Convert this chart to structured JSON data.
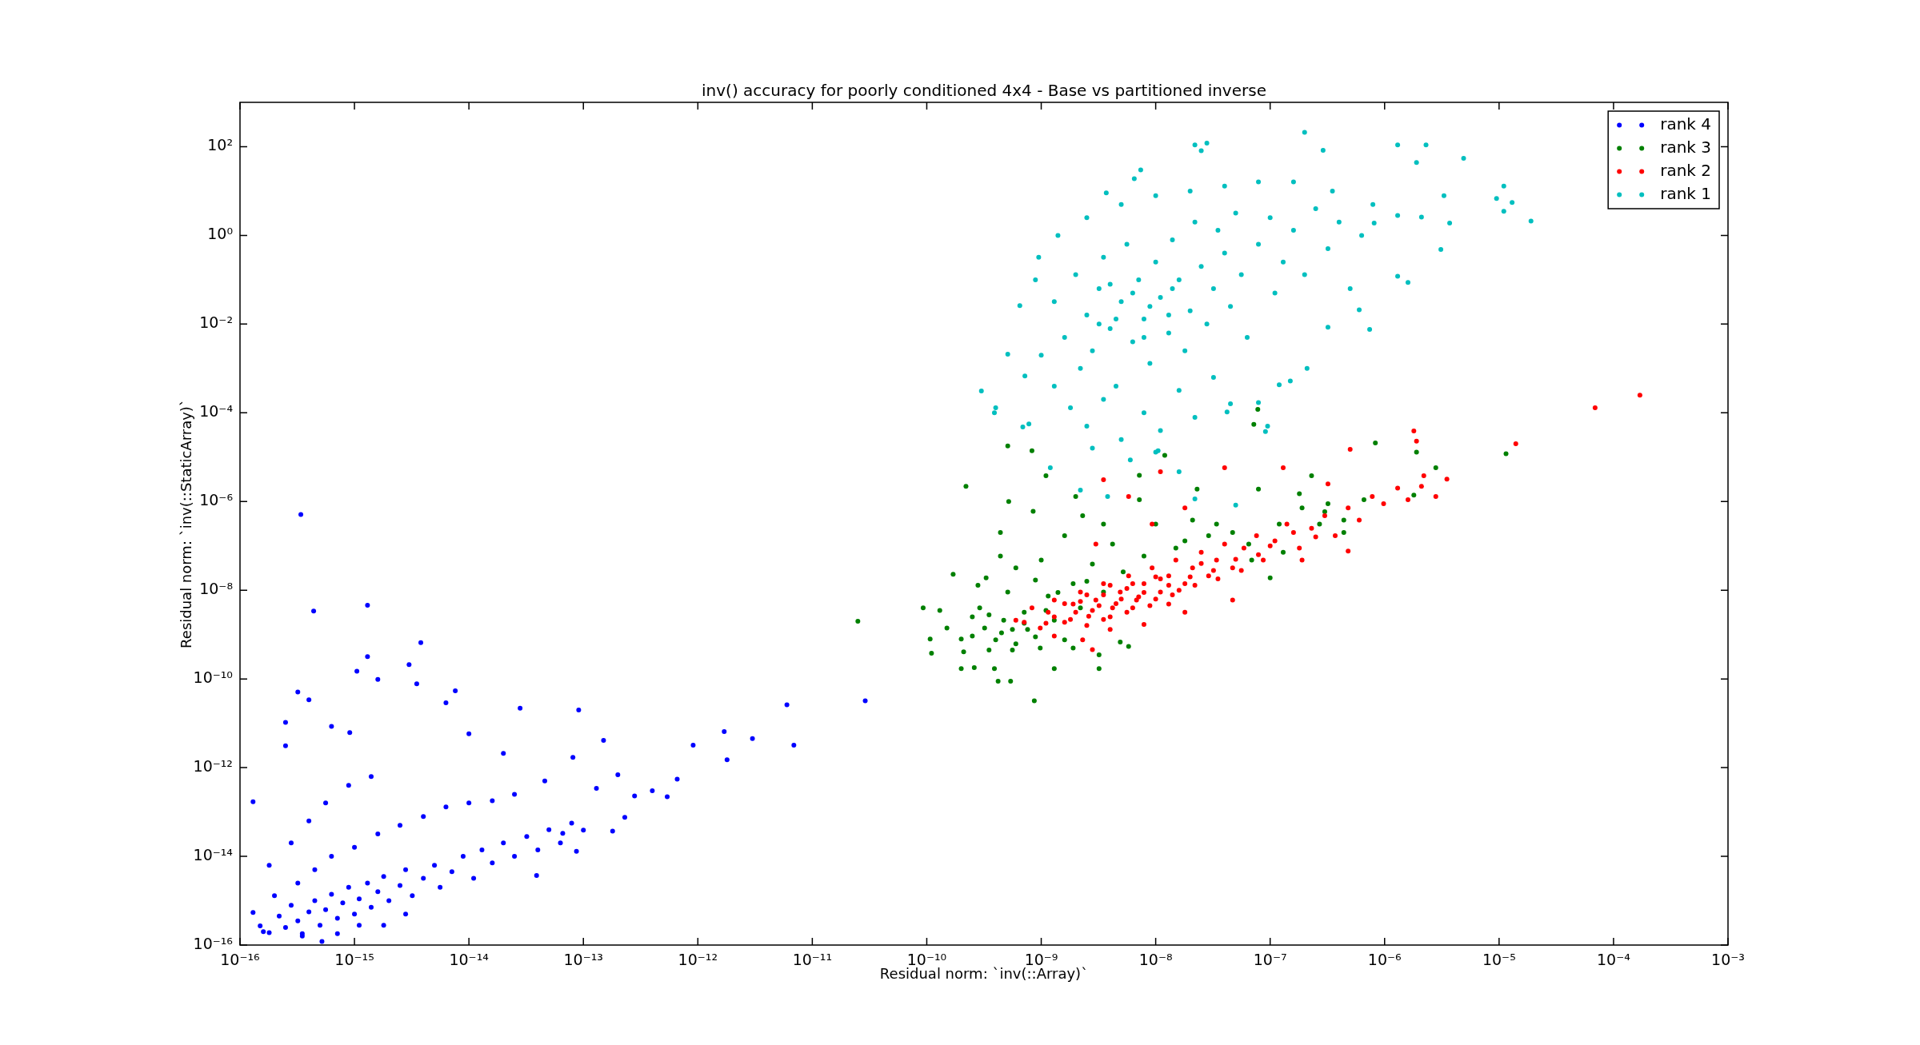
{
  "chart_data": {
    "type": "scatter",
    "title": "inv() accuracy for poorly conditioned 4x4 - Base vs partitioned inverse",
    "xlabel": "Residual norm: `inv(::Array)`",
    "ylabel": "Residual norm: `inv(::StaticArray)`",
    "log": "xy",
    "grid": false,
    "legend": "top right",
    "marker": "circle",
    "xlim": [
      1e-16,
      0.001
    ],
    "ylim": [
      1e-16,
      1000.0
    ],
    "xticks": [
      {
        "value": 1e-16,
        "label": "10⁻¹⁶"
      },
      {
        "value": 1e-15,
        "label": "10⁻¹⁵"
      },
      {
        "value": 1e-14,
        "label": "10⁻¹⁴"
      },
      {
        "value": 1e-13,
        "label": "10⁻¹³"
      },
      {
        "value": 1e-12,
        "label": "10⁻¹²"
      },
      {
        "value": 1e-11,
        "label": "10⁻¹¹"
      },
      {
        "value": 1e-10,
        "label": "10⁻¹⁰"
      },
      {
        "value": 1e-09,
        "label": "10⁻⁹"
      },
      {
        "value": 1e-08,
        "label": "10⁻⁸"
      },
      {
        "value": 1e-07,
        "label": "10⁻⁷"
      },
      {
        "value": 1e-06,
        "label": "10⁻⁶"
      },
      {
        "value": 1e-05,
        "label": "10⁻⁵"
      },
      {
        "value": 0.0001,
        "label": "10⁻⁴"
      },
      {
        "value": 0.001,
        "label": "10⁻³"
      }
    ],
    "yticks": [
      {
        "value": 1e-16,
        "label": "10⁻¹⁶"
      },
      {
        "value": 1e-14,
        "label": "10⁻¹⁴"
      },
      {
        "value": 1e-12,
        "label": "10⁻¹²"
      },
      {
        "value": 1e-10,
        "label": "10⁻¹⁰"
      },
      {
        "value": 1e-08,
        "label": "10⁻⁸"
      },
      {
        "value": 1e-06,
        "label": "10⁻⁶"
      },
      {
        "value": 0.0001,
        "label": "10⁻⁴"
      },
      {
        "value": 0.01,
        "label": "10⁻²"
      },
      {
        "value": 1,
        "label": "10⁰"
      },
      {
        "value": 100,
        "label": "10²"
      }
    ],
    "series": [
      {
        "name": "rank 4",
        "color": "#0000ff",
        "x": [
          3.4e-16,
          4.4e-16,
          1.3e-15,
          3.8e-15,
          1.3e-15,
          3e-15,
          1.05e-15,
          1.6e-15,
          3.5e-15,
          3.2e-16,
          7.6e-15,
          1.3e-16,
          1.7e-12,
          1.8e-12,
          9.1e-13,
          9.1e-14,
          2.8e-14,
          1.5e-13,
          6.6e-13,
          5.4e-13,
          2.3e-13,
          8.7e-14,
          3.9e-14,
          5.2e-16,
          1.5e-16,
          1.8e-16,
          1.3e-16,
          2.5e-16,
          2.5e-16,
          4e-16,
          6.3e-16,
          9.1e-16,
          6.3e-15,
          1e-14,
          2e-14,
          2.8e-13,
          4e-13,
          2e-13,
          1.3e-13,
          8.1e-14,
          4.6e-14,
          1e-13,
          1.8e-13,
          6.6e-14,
          3e-12,
          6e-12,
          6.9e-12,
          2.9e-11,
          2.2e-16,
          2.5e-16,
          2.8e-16,
          3.2e-16,
          3.5e-16,
          4e-16,
          4.5e-16,
          5e-16,
          5.6e-16,
          6.3e-16,
          7.1e-16,
          7.9e-16,
          8.9e-16,
          1e-15,
          1.1e-15,
          1.3e-15,
          1.4e-15,
          1.6e-15,
          1.8e-15,
          2e-15,
          2.5e-15,
          2.8e-15,
          3.2e-15,
          4e-15,
          5e-15,
          5.6e-15,
          7.1e-15,
          8.9e-15,
          1.1e-14,
          1.3e-14,
          1.6e-14,
          2e-14,
          2.5e-14,
          3.2e-14,
          4e-14,
          5e-14,
          6.3e-14,
          7.9e-14,
          2e-16,
          3.2e-16,
          4.5e-16,
          6.3e-16,
          1e-15,
          1.6e-15,
          2.5e-15,
          4e-15,
          6.3e-15,
          1e-14,
          1.6e-14,
          2.5e-14,
          2.8e-16,
          4e-16,
          5.6e-16,
          8.9e-16,
          1.4e-15,
          1.8e-16,
          1.6e-16,
          3.5e-16,
          7.1e-16,
          1.1e-15,
          1.8e-15,
          2.8e-15
        ],
        "values": [
          5.1e-07,
          3.4e-09,
          4.6e-09,
          6.6e-10,
          3.2e-10,
          2.1e-10,
          1.5e-10,
          9.8e-11,
          7.8e-11,
          5.1e-11,
          5.4e-11,
          1.7e-13,
          6.5e-12,
          1.5e-12,
          3.2e-12,
          2e-11,
          2.2e-11,
          4.1e-12,
          5.5e-13,
          2.2e-13,
          7.6e-14,
          1.3e-14,
          3.7e-15,
          1.2e-16,
          2.7e-16,
          1.9e-16,
          5.4e-16,
          1.05e-11,
          3.1e-12,
          3.4e-11,
          8.5e-12,
          6.2e-12,
          2.9e-11,
          5.8e-12,
          2.1e-12,
          2.3e-13,
          3e-13,
          6.9e-13,
          3.4e-13,
          1.7e-12,
          5e-13,
          3.9e-14,
          3.7e-14,
          3.3e-14,
          4.5e-12,
          2.6e-11,
          3.2e-12,
          3.2e-11,
          4.5e-16,
          2.5e-16,
          7.9e-16,
          3.5e-16,
          1.8e-16,
          5.6e-16,
          1e-15,
          2.8e-16,
          6.3e-16,
          1.4e-15,
          4e-16,
          8.9e-16,
          2e-15,
          5e-16,
          1.1e-15,
          2.5e-15,
          7.1e-16,
          1.6e-15,
          3.5e-15,
          1e-15,
          2.2e-15,
          5e-15,
          1.3e-15,
          3.2e-15,
          6.3e-15,
          2e-15,
          4.5e-15,
          1e-14,
          3.2e-15,
          1.4e-14,
          7.1e-15,
          2e-14,
          1e-14,
          2.8e-14,
          1.4e-14,
          4e-14,
          2e-14,
          5.6e-14,
          1.3e-15,
          2.5e-15,
          5e-15,
          1e-14,
          1.6e-14,
          3.2e-14,
          5e-14,
          7.9e-14,
          1.3e-13,
          1.6e-13,
          1.8e-13,
          2.5e-13,
          2e-14,
          6.3e-14,
          1.6e-13,
          4e-13,
          6.3e-13,
          6.3e-15,
          2e-16,
          1.6e-16,
          1.8e-16,
          2.8e-16,
          2.8e-16,
          5e-16
        ]
      },
      {
        "name": "rank 3",
        "color": "#008000",
        "x": [
          9.3e-11,
          1.07e-10,
          1.1e-10,
          1.3e-10,
          1.7e-10,
          2.2e-10,
          5.1e-10,
          8.7e-10,
          4.2e-10,
          5.4e-10,
          2e-10,
          2.6e-10,
          3.9e-10,
          1.3e-09,
          3.2e-09,
          8.3e-10,
          7.8e-08,
          7.2e-08,
          8.3e-07,
          1.9e-06,
          1.15e-05,
          1.8e-06,
          2.8e-06,
          2.8e-10,
          3.3e-10,
          4.4e-10,
          5.2e-10,
          8.5e-10,
          1.1e-09,
          2e-09,
          7.2e-09,
          2.3e-08,
          7.2e-09,
          1.2e-08,
          1e-07,
          2.3e-07,
          6.6e-07,
          3e-07,
          1.8e-07,
          7.9e-08,
          4.4e-07,
          2.7e-07,
          1.3e-07,
          6.5e-08,
          3.4e-08,
          1.8e-08,
          4.9e-09,
          5.8e-09,
          3.2e-09,
          1.9e-09,
          3.2e-10,
          4e-10,
          4.7e-10,
          6e-10,
          7.1e-10,
          7.6e-10,
          9.8e-10,
          1.15e-09,
          1.3e-09,
          1.6e-09,
          1.9e-09,
          2.2e-09,
          2.8e-09,
          3.5e-09,
          4.2e-09,
          5.2e-09,
          7.9e-09,
          1e-08,
          1.5e-08,
          2.1e-08,
          2.9e-08,
          4.7e-08,
          6.9e-08,
          1.2e-07,
          1.9e-07,
          3.2e-07,
          4.4e-07,
          2.1e-10,
          1.5e-10,
          2.5e-10,
          5.1e-10,
          8.9e-10,
          2.9e-10,
          6e-10,
          1e-09,
          1.6e-09,
          2.3e-09,
          3.5e-09,
          4.4e-10,
          5.6e-10,
          8.9e-10,
          3.5e-10,
          1.1e-09,
          2e-10,
          2.5e-11,
          4.5e-10,
          7.1e-10,
          2.5e-10,
          3.5e-10,
          5.6e-10,
          1.4e-09,
          2.5e-09
        ],
        "values": [
          4e-09,
          7.9e-10,
          3.8e-10,
          3.5e-09,
          2.3e-08,
          2.2e-06,
          1.8e-05,
          3.2e-11,
          8.9e-11,
          8.9e-11,
          1.7e-10,
          1.8e-10,
          1.7e-10,
          1.7e-10,
          1.7e-10,
          1.4e-05,
          0.00012,
          5.5e-05,
          2.1e-05,
          1.3e-05,
          1.2e-05,
          1.4e-06,
          5.8e-06,
          1.3e-08,
          1.9e-08,
          2e-07,
          1e-06,
          6e-07,
          3.8e-06,
          1.3e-06,
          3.9e-06,
          1.9e-06,
          1.1e-06,
          1.1e-05,
          1.9e-08,
          3.8e-06,
          1.1e-06,
          5.9e-07,
          1.5e-06,
          1.9e-06,
          2e-07,
          3.1e-07,
          7.2e-08,
          1.1e-07,
          3.1e-07,
          1.3e-07,
          6.8e-10,
          5.4e-10,
          3.5e-10,
          5e-10,
          1.4e-09,
          7.6e-10,
          2.1e-09,
          6.2e-10,
          3.2e-09,
          1.3e-09,
          5e-10,
          7.4e-09,
          2.1e-09,
          7.6e-10,
          1.4e-08,
          4e-09,
          3.9e-08,
          9.1e-09,
          1.1e-07,
          2.6e-08,
          5.9e-08,
          3.1e-07,
          8.9e-08,
          3.8e-07,
          1.7e-07,
          2e-07,
          4.8e-08,
          3.1e-07,
          7.2e-07,
          8.9e-07,
          3.8e-07,
          4.1e-10,
          1.4e-09,
          9.3e-10,
          9.1e-09,
          1.7e-08,
          4e-09,
          3.2e-08,
          4.8e-08,
          1.7e-07,
          4.8e-07,
          3.1e-07,
          5.9e-08,
          1.3e-09,
          8.9e-10,
          4.5e-10,
          3.5e-09,
          7.9e-10,
          2e-09,
          1.1e-09,
          1.8e-09,
          2.5e-09,
          2.8e-09,
          4.5e-10,
          8.9e-09,
          1.6e-08
        ]
      },
      {
        "name": "rank 2",
        "color": "#ff0000",
        "x": [
          7.1e-10,
          8.3e-10,
          9.8e-10,
          1.15e-09,
          1.3e-09,
          1.6e-09,
          1.9e-09,
          2.2e-09,
          2.6e-09,
          3e-09,
          3.5e-09,
          4.2e-09,
          4.9e-09,
          5.8e-09,
          6.8e-09,
          7.9e-09,
          9.3e-09,
          1.1e-08,
          1.3e-08,
          1.5e-08,
          1.8e-08,
          2.1e-08,
          2.5e-08,
          2.9e-08,
          3.4e-08,
          4e-08,
          4.7e-08,
          5.9e-08,
          7.6e-08,
          8.7e-08,
          1.1e-07,
          1.4e-07,
          1.8e-07,
          2.3e-07,
          3e-07,
          3.7e-07,
          4.8e-07,
          6e-07,
          7.8e-07,
          9.8e-07,
          1.3e-06,
          1.6e-06,
          2.2e-06,
          2.8e-06,
          3.5e-06,
          1.8e-06,
          1.9e-06,
          1.4e-05,
          5e-07,
          1.9e-07,
          4.8e-07,
          3.2e-07,
          1.3e-07,
          4e-08,
          1.1e-08,
          5.8e-09,
          3.5e-09,
          9.3e-09,
          3e-09,
          1.8e-08,
          4.7e-08,
          1.8e-08,
          7.9e-09,
          4e-09,
          2.3e-09,
          6e-10,
          2.8e-09,
          1.3e-08,
          1.3e-09,
          0.00017,
          2.1e-06,
          1.3e-09,
          2e-09,
          3.2e-09,
          5e-09,
          7.9e-09,
          1.3e-08,
          2e-08,
          3.2e-08,
          5e-08,
          2.5e-09,
          4e-09,
          6.3e-09,
          1e-08,
          1.6e-08,
          1.6e-09,
          2.5e-09,
          4e-09,
          6.3e-09,
          1e-08,
          2.5e-08,
          1e-07,
          1.6e-07,
          2.5e-07,
          6.9e-05,
          1.1e-09,
          1.8e-09,
          2.8e-09,
          4.5e-09,
          7.1e-09,
          1.1e-08,
          1.4e-08,
          2.2e-08,
          3.5e-08,
          5.6e-08,
          3.5e-09,
          5.6e-09,
          8.9e-09,
          2.2e-09,
          3.5e-09,
          5.6e-09,
          7.9e-08
        ],
        "values": [
          1.9e-09,
          4e-09,
          1.4e-09,
          3.2e-09,
          6e-09,
          1.9e-09,
          4.9e-09,
          9.1e-09,
          2.6e-09,
          6e-09,
          1.4e-08,
          4e-09,
          9.1e-09,
          2.1e-08,
          6e-09,
          1.4e-08,
          3.2e-08,
          9.1e-09,
          2.1e-08,
          4.8e-08,
          1.4e-08,
          3.2e-08,
          7.2e-08,
          2.1e-08,
          4.8e-08,
          1.1e-07,
          3.2e-08,
          8.9e-08,
          1.7e-07,
          4.8e-08,
          1.3e-07,
          3.1e-07,
          8.9e-08,
          2.5e-07,
          4.8e-07,
          1.7e-07,
          7.2e-07,
          3.8e-07,
          1.3e-06,
          8.9e-07,
          2e-06,
          1.1e-06,
          3.8e-06,
          1.3e-06,
          3.2e-06,
          3.9e-05,
          2.3e-05,
          2e-05,
          1.5e-05,
          4.8e-08,
          7.6e-08,
          2.5e-06,
          5.8e-06,
          5.8e-06,
          4.7e-06,
          1.3e-06,
          3.1e-06,
          3.1e-07,
          1.1e-07,
          7.2e-07,
          6e-09,
          3.2e-09,
          1.7e-09,
          1.3e-09,
          7.6e-10,
          2.1e-09,
          4.6e-10,
          4.9e-09,
          9.3e-10,
          0.00025,
          2.2e-06,
          2.5e-09,
          3.2e-09,
          4.5e-09,
          6.3e-09,
          8.9e-09,
          1.3e-08,
          2e-08,
          2.8e-08,
          5e-08,
          1.6e-09,
          2.5e-09,
          4e-09,
          6.3e-09,
          1e-08,
          5e-09,
          7.9e-09,
          1.3e-08,
          1.4e-08,
          2e-08,
          4e-08,
          1e-07,
          2e-07,
          1.6e-07,
          0.00013,
          1.8e-09,
          2.2e-09,
          3.5e-09,
          5e-09,
          7.1e-09,
          1.8e-08,
          7.9e-09,
          1.3e-08,
          1.8e-08,
          2.8e-08,
          2.2e-09,
          3.2e-09,
          4.5e-09,
          5.6e-09,
          7.9e-09,
          1.1e-08,
          6.3e-08
        ]
      },
      {
        "name": "rank 1",
        "color": "#00bfbf",
        "x": [
          2e-07,
          2.2e-08,
          2.8e-08,
          2.5e-08,
          1.3e-06,
          2.3e-06,
          4.9e-06,
          1.9e-06,
          1.1e-05,
          1.3e-05,
          1.9e-05,
          9.5e-06,
          1.1e-05,
          3.1e-06,
          1.6e-06,
          1.3e-06,
          7.4e-07,
          2.9e-07,
          7.4e-09,
          6.5e-09,
          3.7e-09,
          9.5e-10,
          6.5e-10,
          3e-10,
          4e-10,
          5.1e-10,
          7.2e-10,
          7.8e-10,
          9.5e-08,
          1.5e-07,
          1.2e-07,
          2.1e-07,
          7.9e-08,
          3.2e-07,
          6e-07,
          3.3e-06,
          3.7e-06,
          2.1e-06,
          1.3e-06,
          8.1e-07,
          1.3e-09,
          1.6e-09,
          2e-09,
          2.2e-09,
          2.5e-09,
          2.8e-09,
          3.2e-09,
          3.5e-09,
          4e-09,
          4.5e-09,
          5e-09,
          5.6e-09,
          6.3e-09,
          7.1e-09,
          7.9e-09,
          8.9e-09,
          1e-08,
          1.1e-08,
          1.3e-08,
          1.4e-08,
          1.6e-08,
          1.8e-08,
          2e-08,
          2.2e-08,
          2.5e-08,
          2.8e-08,
          3.2e-08,
          3.5e-08,
          4e-08,
          4.5e-08,
          5e-08,
          5.6e-08,
          6.3e-08,
          7.9e-08,
          1e-07,
          1.1e-07,
          1.3e-07,
          1.6e-07,
          2e-07,
          2.5e-07,
          3.2e-07,
          4e-07,
          5e-07,
          6.3e-07,
          7.9e-07,
          1.3e-09,
          1.8e-09,
          2.5e-09,
          3.5e-09,
          5e-09,
          7.9e-09,
          1.1e-08,
          1.6e-08,
          2.2e-08,
          3.2e-08,
          4.5e-08,
          1e-08,
          2.8e-09,
          1e-09,
          8.9e-10,
          1.4e-09,
          2.5e-09,
          5e-09,
          1e-08,
          2e-08,
          4e-08,
          7.9e-08,
          1.6e-07,
          3.5e-07,
          2.2e-09,
          3.8e-09,
          2.2e-08,
          6e-09,
          1.05e-08,
          1.6e-08,
          1.2e-09,
          3.9e-10,
          6.9e-10,
          9.1e-08,
          4.2e-08,
          5e-08,
          4.5e-09,
          6.3e-09,
          8.9e-09,
          4e-09,
          1.3e-08,
          7.9e-09,
          3.2e-09,
          1.4e-08
        ],
        "values": [
          210,
          110,
          120,
          81,
          110,
          110,
          55,
          44,
          13,
          5.5,
          2.1,
          6.8,
          3.5,
          0.48,
          0.087,
          0.12,
          0.0076,
          83,
          30,
          19,
          9.1,
          0.32,
          0.026,
          0.00031,
          0.00013,
          0.0021,
          0.00068,
          5.6e-05,
          5e-05,
          0.00052,
          0.00043,
          0.001,
          0.00017,
          0.0085,
          0.021,
          7.9,
          1.9,
          2.6,
          2.8,
          1.9,
          0.032,
          0.005,
          0.13,
          0.001,
          0.016,
          0.0025,
          0.063,
          0.32,
          0.0079,
          0.0004,
          0.032,
          0.63,
          0.004,
          0.1,
          0.013,
          0.0013,
          0.25,
          0.04,
          0.0063,
          0.79,
          0.1,
          0.0025,
          0.02,
          2.0,
          0.2,
          0.01,
          0.063,
          1.3,
          0.4,
          0.025,
          3.2,
          0.13,
          0.005,
          0.63,
          2.5,
          0.05,
          0.25,
          1.3,
          0.13,
          4.0,
          0.5,
          2.0,
          0.063,
          1.0,
          5.0,
          0.0004,
          0.00013,
          5e-05,
          0.0002,
          2.5e-05,
          0.0001,
          4e-05,
          0.00032,
          7.9e-05,
          0.00063,
          0.00016,
          1.3e-05,
          1.6e-05,
          0.002,
          0.1,
          1.0,
          2.5,
          5.0,
          7.9,
          10,
          13,
          16,
          16,
          10,
          1.8e-06,
          1.3e-06,
          1.15e-06,
          8.7e-06,
          1.4e-05,
          4.7e-06,
          5.8e-06,
          0.0001,
          4.8e-05,
          3.8e-05,
          0.000105,
          8.3e-07,
          0.013,
          0.05,
          0.025,
          0.079,
          0.016,
          0.005,
          0.01,
          0.063
        ]
      }
    ]
  }
}
